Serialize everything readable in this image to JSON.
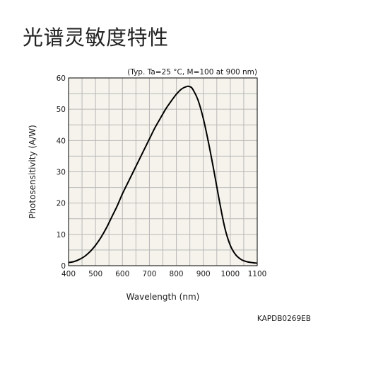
{
  "page": {
    "title": "光谱灵敏度特性",
    "figure_code": "KAPDB0269EB"
  },
  "chart_data": {
    "type": "line",
    "title": "",
    "condition_note": "(Typ. Ta=25 °C, M=100 at 900 nm)",
    "xlabel": "Wavelength (nm)",
    "ylabel": "Photosensitivity (A/W)",
    "xlim": [
      400,
      1100
    ],
    "ylim": [
      0,
      60
    ],
    "xticks": [
      400,
      500,
      600,
      700,
      800,
      900,
      1000,
      1100
    ],
    "yticks": [
      0,
      10,
      20,
      30,
      40,
      50,
      60
    ],
    "grid": true,
    "background_color": "#f5f3eb",
    "grid_color": "#b8b8b8",
    "line_color": "#000000",
    "series": [
      {
        "x": [
          400,
          420,
          440,
          460,
          480,
          500,
          520,
          540,
          560,
          580,
          600,
          620,
          640,
          660,
          680,
          700,
          720,
          740,
          760,
          780,
          800,
          820,
          840,
          850,
          860,
          880,
          900,
          920,
          940,
          960,
          980,
          1000,
          1020,
          1040,
          1060,
          1080,
          1100
        ],
        "y": [
          1.0,
          1.3,
          2.0,
          3.0,
          4.5,
          6.5,
          9.0,
          12.0,
          15.5,
          19.0,
          23.0,
          26.5,
          30.0,
          33.5,
          37.0,
          40.5,
          44.0,
          47.0,
          50.0,
          52.5,
          54.8,
          56.5,
          57.3,
          57.2,
          56.5,
          53.0,
          47.0,
          39.0,
          30.0,
          20.5,
          12.0,
          6.5,
          3.5,
          2.0,
          1.3,
          1.0,
          0.8
        ]
      }
    ]
  }
}
